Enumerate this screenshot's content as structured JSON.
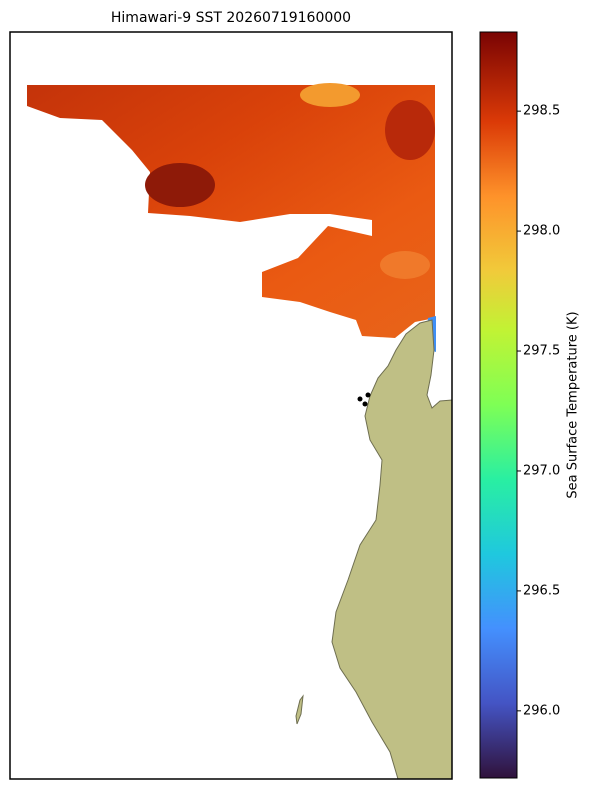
{
  "title": "Himawari-9 SST 20260719160000",
  "colorbar": {
    "label": "Sea Surface Temperature (K)",
    "lim": [
      295.72,
      298.83
    ],
    "ticks": [
      {
        "value": 296,
        "label": "296.0"
      },
      296.5,
      {
        "value": 297,
        "label": "297.0"
      },
      297.5,
      {
        "value": 298,
        "label": "298.0"
      },
      298.5
    ]
  }
}
